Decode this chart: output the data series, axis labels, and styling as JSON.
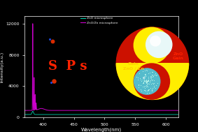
{
  "background_color": "#000000",
  "plot_bg_color": "#000000",
  "xlabel": "Wavelength(nm)",
  "ylabel": "Intensity(a.u.)",
  "xlim": [
    370,
    620
  ],
  "ylim": [
    0,
    13000
  ],
  "yticks": [
    0,
    4000,
    8000,
    12000
  ],
  "xticks": [
    400,
    450,
    500,
    550,
    600
  ],
  "axis_color": "#ffffff",
  "tick_color": "#ffffff",
  "label_color": "#ffffff",
  "legend_labels": [
    "ZnO microsphere",
    "ZnO/Zn microsphere"
  ],
  "legend_colors": [
    "#00ccaa",
    "#cc00cc"
  ],
  "zno_baseline": 380,
  "znozn_baseline": 900,
  "text_SPs_color": "#ff2200",
  "text_SPs": "S  P s",
  "inset_red_color": "#cc1100",
  "inset_yellow_color": "#ffee00",
  "inset_white_ball_color": "#e8f8f8",
  "inset_cyan_ball_color": "#55bbcc",
  "inset_gain_text_color": "#ffcc00",
  "inset_zno_text_color": "#ff2200"
}
